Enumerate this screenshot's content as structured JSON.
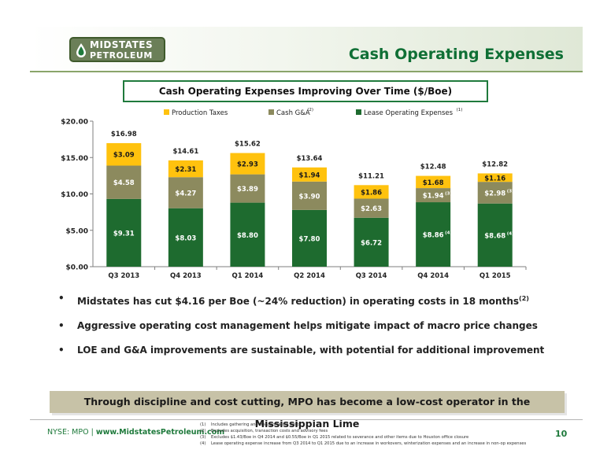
{
  "header": {
    "logo_line1": "MIDSTATES",
    "logo_line2": "PETROLEUM",
    "title": "Cash Operating Expenses"
  },
  "colors": {
    "lease": "#1e6b2f",
    "gna": "#8c8a5e",
    "taxes": "#ffc20e",
    "brand_green": "#1f7a3c"
  },
  "chart_data": {
    "type": "bar",
    "stacked": true,
    "title": "Cash Operating Expenses Improving Over Time ($/Boe)",
    "categories": [
      "Q3 2013",
      "Q4 2013",
      "Q1 2014",
      "Q2 2014",
      "Q3 2014",
      "Q4 2014",
      "Q1 2015"
    ],
    "series": [
      {
        "name": "Lease Operating Expenses",
        "legend_note": "(1)",
        "values": [
          9.31,
          8.03,
          8.8,
          7.8,
          6.72,
          8.86,
          8.68
        ],
        "labels": [
          "$9.31",
          "$8.03",
          "$8.80",
          "$7.80",
          "$6.72",
          "$8.86",
          "$8.68"
        ],
        "notes": [
          "",
          "",
          "",
          "",
          "",
          "(4)",
          "(4)"
        ]
      },
      {
        "name": "Cash G&A",
        "legend_note": "(2)",
        "values": [
          4.58,
          4.27,
          3.89,
          3.9,
          2.63,
          1.94,
          2.98
        ],
        "labels": [
          "$4.58",
          "$4.27",
          "$3.89",
          "$3.90",
          "$2.63",
          "$1.94",
          "$2.98"
        ],
        "notes": [
          "",
          "",
          "",
          "",
          "",
          "(3)",
          "(3)"
        ]
      },
      {
        "name": "Production Taxes",
        "legend_note": "",
        "values": [
          3.09,
          2.31,
          2.93,
          1.94,
          1.86,
          1.68,
          1.16
        ],
        "labels": [
          "$3.09",
          "$2.31",
          "$2.93",
          "$1.94",
          "$1.86",
          "$1.68",
          "$1.16"
        ],
        "notes": [
          "",
          "",
          "",
          "",
          "",
          "",
          ""
        ]
      }
    ],
    "totals": [
      "$16.98",
      "$14.61",
      "$15.62",
      "$13.64",
      "$11.21",
      "$12.48",
      "$12.82"
    ],
    "ylim": [
      0,
      20
    ],
    "yticks": [
      "$0.00",
      "$5.00",
      "$10.00",
      "$15.00",
      "$20.00"
    ],
    "xlabel": "",
    "ylabel": "",
    "legend_position": "top",
    "grid": false
  },
  "bullets": [
    {
      "text": "Midstates has cut $4.16 per Boe (~24% reduction) in operating costs in 18 months",
      "sup": "(2)"
    },
    {
      "text": "Aggressive operating cost management helps mitigate impact of macro price changes",
      "sup": ""
    },
    {
      "text": "LOE and G&A improvements are sustainable, with potential for additional improvement",
      "sup": ""
    }
  ],
  "banner": "Through discipline and cost cutting, MPO has become a low-cost operator in the Mississippian Lime",
  "footer": {
    "ticker": "NYSE: MPO",
    "separator": "|",
    "url": "www.MidstatesPetroleum.com",
    "page_number": "10",
    "footnotes": [
      {
        "num": "(1)",
        "text": "Includes gathering and transportation costs"
      },
      {
        "num": "(2)",
        "text": "Excludes acquisition, transaction costs and advisory fees"
      },
      {
        "num": "(3)",
        "text": "Excludes $1.43/Boe in Q4 2014 and $0.55/Boe in Q1 2015 related to severance and other items due to Houston office closure"
      },
      {
        "num": "(4)",
        "text": "Lease operating expense increase from Q3 2014 to Q1 2015 due to an increase in workovers, winterization expenses and an increase in non-op expenses"
      }
    ]
  }
}
